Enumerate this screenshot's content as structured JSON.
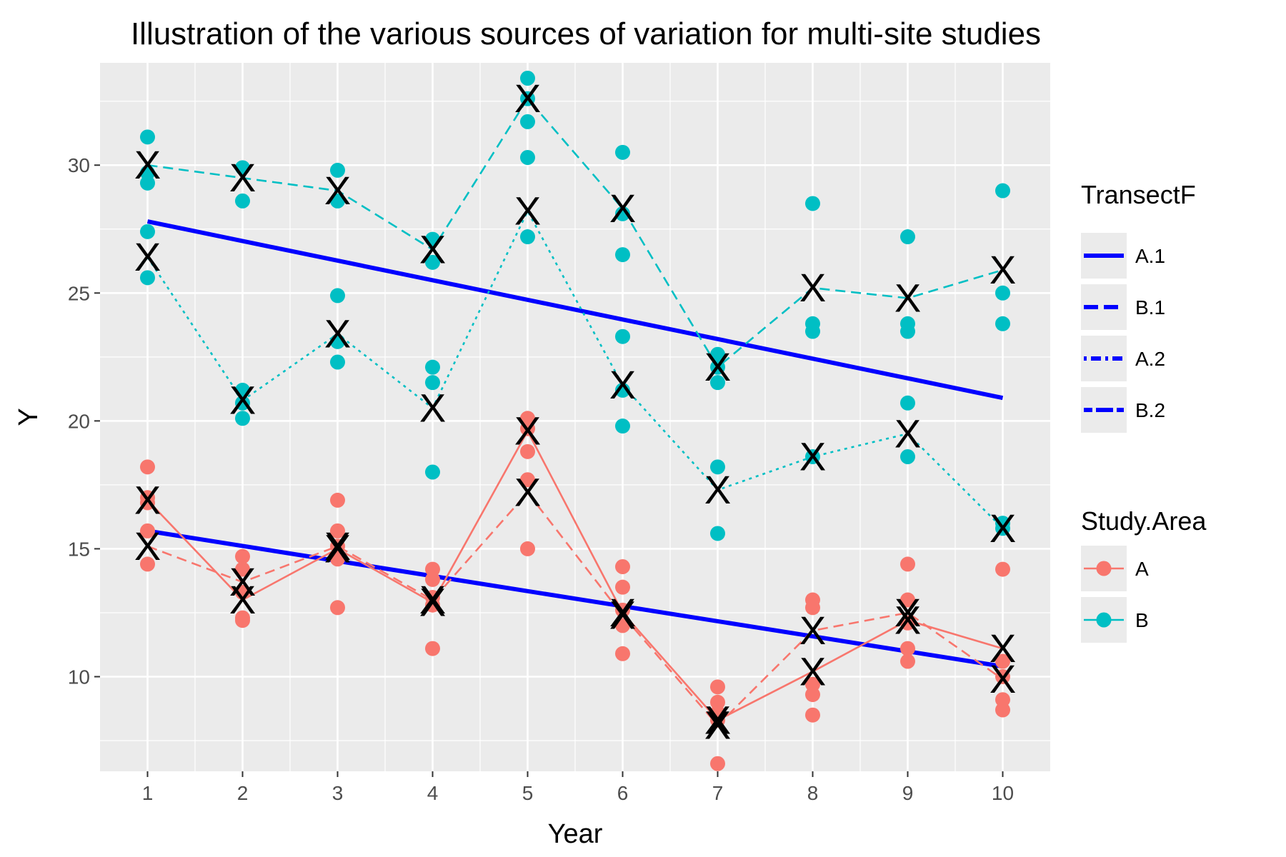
{
  "colors": {
    "panel_bg": "#ebebeb",
    "grid": "#ffffff",
    "study_A": "#f8766d",
    "study_B": "#00bfc4",
    "regression": "#0000ff",
    "mean_marker": "#000000",
    "key_bg": "#ebebeb"
  },
  "chart_data": {
    "type": "scatter",
    "title": "Illustration of the various sources of variation for multi-site studies",
    "xlabel": "Year",
    "ylabel": "Y",
    "xlim": [
      0.5,
      10.5
    ],
    "ylim": [
      6.3,
      34
    ],
    "x_ticks": [
      "1",
      "2",
      "3",
      "4",
      "5",
      "6",
      "7",
      "8",
      "9",
      "10"
    ],
    "y_ticks": [
      "10",
      "15",
      "20",
      "25",
      "30"
    ],
    "grid": true,
    "mean_marker_label": "X",
    "legends": [
      {
        "title": "TransectF",
        "position": "right",
        "items": [
          {
            "label": "A.1",
            "dash": "solid"
          },
          {
            "label": "B.1",
            "dash": "longdash"
          },
          {
            "label": "A.2",
            "dash": "dotdash"
          },
          {
            "label": "B.2",
            "dash": "twodash"
          }
        ]
      },
      {
        "title": "Study.Area",
        "position": "right",
        "items": [
          {
            "label": "A",
            "color": "#f8766d"
          },
          {
            "label": "B",
            "color": "#00bfc4"
          }
        ]
      }
    ],
    "points": {
      "A": [
        [
          1,
          18.2
        ],
        [
          1,
          17.0
        ],
        [
          1,
          16.8
        ],
        [
          1,
          15.7
        ],
        [
          1,
          14.4
        ],
        [
          2,
          14.7
        ],
        [
          2,
          14.2
        ],
        [
          2,
          13.3
        ],
        [
          2,
          12.3
        ],
        [
          2,
          12.2
        ],
        [
          3,
          16.9
        ],
        [
          3,
          15.7
        ],
        [
          3,
          15.1
        ],
        [
          3,
          14.6
        ],
        [
          3,
          12.7
        ],
        [
          4,
          14.2
        ],
        [
          4,
          13.8
        ],
        [
          4,
          13.1
        ],
        [
          4,
          12.8
        ],
        [
          4,
          11.1
        ],
        [
          5,
          20.1
        ],
        [
          5,
          19.7
        ],
        [
          5,
          18.8
        ],
        [
          5,
          17.7
        ],
        [
          5,
          15.0
        ],
        [
          6,
          14.3
        ],
        [
          6,
          13.5
        ],
        [
          6,
          12.6
        ],
        [
          6,
          12.0
        ],
        [
          6,
          10.9
        ],
        [
          7,
          9.6
        ],
        [
          7,
          9.0
        ],
        [
          7,
          8.6
        ],
        [
          7,
          8.3
        ],
        [
          7,
          6.6
        ],
        [
          8,
          13.0
        ],
        [
          8,
          12.7
        ],
        [
          8,
          9.7
        ],
        [
          8,
          9.3
        ],
        [
          8,
          8.5
        ],
        [
          9,
          14.4
        ],
        [
          9,
          13.0
        ],
        [
          9,
          12.1
        ],
        [
          9,
          11.1
        ],
        [
          9,
          10.6
        ],
        [
          10,
          14.2
        ],
        [
          10,
          10.6
        ],
        [
          10,
          10.0
        ],
        [
          10,
          9.1
        ],
        [
          10,
          8.7
        ]
      ],
      "B": [
        [
          1,
          31.1
        ],
        [
          1,
          29.7
        ],
        [
          1,
          29.3
        ],
        [
          1,
          27.4
        ],
        [
          1,
          25.6
        ],
        [
          2,
          29.9
        ],
        [
          2,
          28.6
        ],
        [
          2,
          21.2
        ],
        [
          2,
          20.7
        ],
        [
          2,
          20.1
        ],
        [
          3,
          29.8
        ],
        [
          3,
          28.6
        ],
        [
          3,
          24.9
        ],
        [
          3,
          23.1
        ],
        [
          3,
          22.3
        ],
        [
          4,
          27.1
        ],
        [
          4,
          26.2
        ],
        [
          4,
          22.1
        ],
        [
          4,
          21.5
        ],
        [
          4,
          18.0
        ],
        [
          5,
          33.4
        ],
        [
          5,
          32.6
        ],
        [
          5,
          31.7
        ],
        [
          5,
          30.3
        ],
        [
          5,
          27.2
        ],
        [
          6,
          30.5
        ],
        [
          6,
          28.1
        ],
        [
          6,
          26.5
        ],
        [
          6,
          23.3
        ],
        [
          6,
          21.2
        ],
        [
          6,
          19.8
        ],
        [
          7,
          22.6
        ],
        [
          7,
          22.1
        ],
        [
          7,
          21.5
        ],
        [
          7,
          18.2
        ],
        [
          7,
          15.6
        ],
        [
          8,
          28.5
        ],
        [
          8,
          23.8
        ],
        [
          8,
          23.5
        ],
        [
          8,
          18.6
        ],
        [
          9,
          27.2
        ],
        [
          9,
          23.8
        ],
        [
          9,
          23.5
        ],
        [
          9,
          20.7
        ],
        [
          9,
          18.6
        ],
        [
          10,
          29.0
        ],
        [
          10,
          25.0
        ],
        [
          10,
          23.8
        ],
        [
          10,
          16.0
        ],
        [
          10,
          15.8
        ]
      ]
    },
    "series": [
      {
        "study_area": "A",
        "transect": "A.1",
        "dash": "solid",
        "values": [
          16.9,
          13.0,
          15.0,
          12.9,
          19.6,
          12.5,
          8.3,
          10.2,
          12.2,
          11.1
        ]
      },
      {
        "study_area": "A",
        "transect": "A.2",
        "dash": "dashed",
        "values": [
          15.1,
          13.7,
          15.1,
          13.0,
          17.2,
          12.4,
          8.1,
          11.8,
          12.5,
          9.9
        ]
      },
      {
        "study_area": "B",
        "transect": "B.1",
        "dash": "dashed",
        "values": [
          30.0,
          29.5,
          29.0,
          26.7,
          32.6,
          28.3,
          22.1,
          25.2,
          24.8,
          25.9
        ]
      },
      {
        "study_area": "B",
        "transect": "B.2",
        "dash": "dotted",
        "values": [
          26.4,
          20.8,
          23.4,
          20.5,
          28.2,
          21.4,
          17.3,
          18.6,
          19.5,
          15.8
        ]
      }
    ],
    "regression_lines": [
      {
        "study_area": "B",
        "x": [
          1,
          10
        ],
        "y": [
          27.8,
          20.9
        ]
      },
      {
        "study_area": "A",
        "x": [
          1,
          10
        ],
        "y": [
          15.7,
          10.4
        ]
      }
    ]
  }
}
